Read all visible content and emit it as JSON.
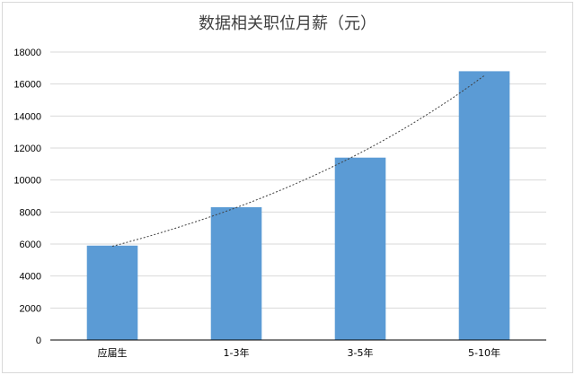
{
  "chart_data": {
    "type": "bar",
    "title": "数据相关职位月薪（元）",
    "categories": [
      "应届生",
      "1-3年",
      "3-5年",
      "5-10年"
    ],
    "values": [
      5900,
      8300,
      11400,
      16800
    ],
    "ylim": [
      0,
      18000
    ],
    "yticks": [
      0,
      2000,
      4000,
      6000,
      8000,
      10000,
      12000,
      14000,
      16000,
      18000
    ],
    "grid": true,
    "trendline": "exponential",
    "colors": {
      "bar": "#5b9bd5",
      "grid": "#d9d9d9",
      "axis": "#000000",
      "trend": "#404040"
    }
  }
}
